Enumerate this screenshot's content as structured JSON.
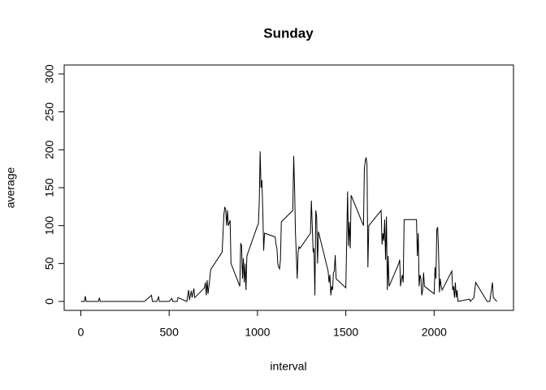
{
  "chart_data": {
    "type": "line",
    "title": "Sunday",
    "x_label": "interval",
    "y_label": "average",
    "x": [
      0,
      20,
      25,
      30,
      100,
      105,
      110,
      200,
      360,
      400,
      405,
      430,
      440,
      445,
      500,
      515,
      520,
      545,
      550,
      600,
      610,
      615,
      625,
      630,
      640,
      645,
      700,
      705,
      710,
      715,
      720,
      730,
      735,
      800,
      810,
      815,
      820,
      825,
      830,
      835,
      845,
      850,
      900,
      905,
      910,
      915,
      920,
      925,
      930,
      935,
      940,
      1000,
      1005,
      1010,
      1015,
      1020,
      1025,
      1030,
      1035,
      1040,
      1100,
      1105,
      1110,
      1115,
      1120,
      1125,
      1130,
      1135,
      1200,
      1205,
      1210,
      1215,
      1220,
      1225,
      1230,
      1235,
      1240,
      1300,
      1305,
      1310,
      1315,
      1320,
      1325,
      1330,
      1335,
      1340,
      1345,
      1400,
      1405,
      1410,
      1415,
      1420,
      1425,
      1430,
      1435,
      1440,
      1445,
      1500,
      1505,
      1510,
      1515,
      1520,
      1525,
      1530,
      1600,
      1605,
      1610,
      1615,
      1620,
      1625,
      1630,
      1700,
      1705,
      1710,
      1715,
      1720,
      1725,
      1730,
      1735,
      1740,
      1745,
      1800,
      1805,
      1810,
      1815,
      1820,
      1825,
      1830,
      1900,
      1905,
      1910,
      1915,
      1920,
      1925,
      1930,
      1935,
      1940,
      1945,
      2000,
      2005,
      2010,
      2015,
      2020,
      2025,
      2030,
      2035,
      2040,
      2045,
      2100,
      2105,
      2110,
      2115,
      2120,
      2125,
      2130,
      2135,
      2200,
      2205,
      2225,
      2235,
      2300,
      2315,
      2330,
      2335,
      2355
    ],
    "values": [
      0,
      0,
      7,
      0,
      0,
      5,
      0,
      0,
      0,
      8,
      0,
      0,
      6,
      0,
      0,
      4,
      0,
      0,
      5,
      0,
      15,
      2,
      14,
      5,
      17,
      5,
      18,
      25,
      8,
      28,
      10,
      30,
      42,
      65,
      115,
      124,
      122,
      100,
      120,
      100,
      107,
      50,
      20,
      76,
      74,
      30,
      57,
      25,
      50,
      15,
      60,
      100,
      102,
      130,
      198,
      150,
      160,
      120,
      67,
      90,
      85,
      75,
      70,
      50,
      45,
      43,
      55,
      105,
      120,
      192,
      150,
      90,
      60,
      30,
      65,
      72,
      70,
      90,
      133,
      100,
      65,
      70,
      8,
      120,
      112,
      50,
      92,
      40,
      25,
      35,
      8,
      20,
      15,
      38,
      40,
      61,
      30,
      18,
      80,
      145,
      73,
      105,
      70,
      140,
      100,
      175,
      185,
      190,
      180,
      45,
      100,
      120,
      75,
      90,
      80,
      108,
      55,
      112,
      15,
      60,
      20,
      50,
      55,
      20,
      30,
      35,
      25,
      108,
      108,
      60,
      90,
      20,
      35,
      30,
      8,
      15,
      38,
      20,
      10,
      45,
      30,
      95,
      98,
      65,
      12,
      30,
      20,
      15,
      40,
      15,
      20,
      5,
      25,
      5,
      15,
      0,
      3,
      0,
      5,
      25,
      0,
      0,
      25,
      5,
      0
    ],
    "color": "#000000",
    "xlim": [
      -94.2,
      2449.2
    ],
    "ylim": [
      -11.8,
      311.8
    ],
    "xticks": [
      0,
      500,
      1000,
      1500,
      2000
    ],
    "yticks": [
      0,
      50,
      100,
      150,
      200,
      250,
      300
    ]
  }
}
